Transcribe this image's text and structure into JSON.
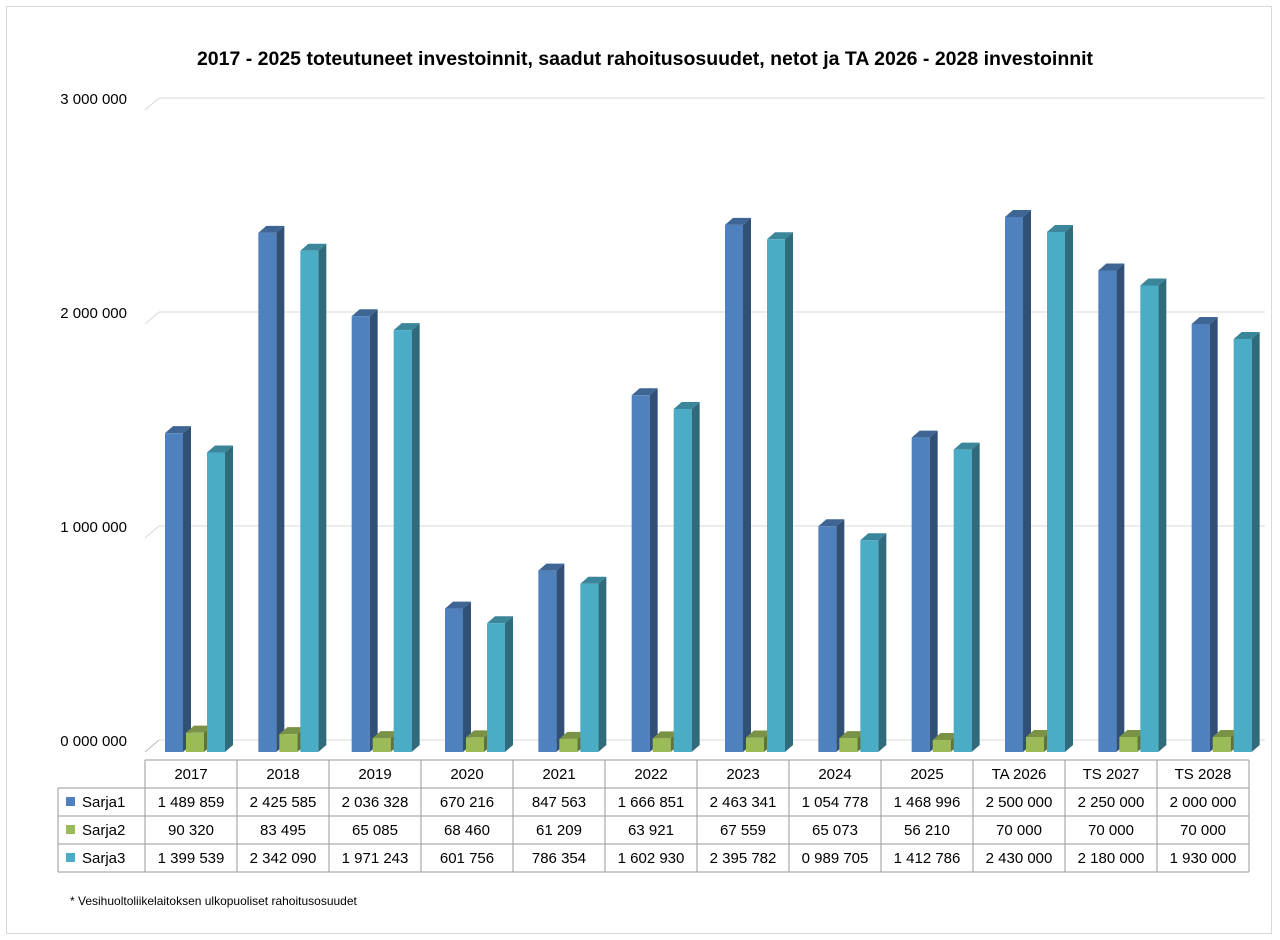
{
  "chart_data": {
    "type": "bar",
    "title": "2017 - 2025 toteutuneet investoinnit, saadut rahoitusosuudet, netot ja TA 2026 - 2028 investoinnit",
    "categories": [
      "2017",
      "2018",
      "2019",
      "2020",
      "2021",
      "2022",
      "2023",
      "2024",
      "2025",
      "TA 2026",
      "TS 2027",
      "TS 2028"
    ],
    "series": [
      {
        "name": "Sarja1",
        "color": "#4f81bd",
        "values": [
          1489859,
          2425585,
          2036328,
          670216,
          847563,
          1666851,
          2463341,
          1054778,
          1468996,
          2500000,
          2250000,
          2000000
        ],
        "labels": [
          "1 489 859",
          "2 425 585",
          "2 036 328",
          "670 216",
          "847 563",
          "1 666 851",
          "2 463 341",
          "1 054 778",
          "1 468 996",
          "2 500 000",
          "2 250 000",
          "2 000 000"
        ]
      },
      {
        "name": "Sarja2",
        "color": "#9bbb59",
        "values": [
          90320,
          83495,
          65085,
          68460,
          61209,
          63921,
          67559,
          65073,
          56210,
          70000,
          70000,
          70000
        ],
        "labels": [
          "90 320",
          "83 495",
          "65 085",
          "68 460",
          "61 209",
          "63 921",
          "67 559",
          "65 073",
          "56 210",
          "70 000",
          "70 000",
          "70 000"
        ]
      },
      {
        "name": "Sarja3",
        "color": "#4bacc6",
        "values": [
          1399539,
          2342090,
          1971243,
          601756,
          786354,
          1602930,
          2395782,
          989705,
          1412786,
          2430000,
          2180000,
          1930000
        ],
        "labels": [
          "1 399 539",
          "2 342 090",
          "1 971 243",
          "601 756",
          "786 354",
          "1 602 930",
          "2 395 782",
          "0 989 705",
          "1 412 786",
          "2 430 000",
          "2 180 000",
          "1 930 000"
        ]
      }
    ],
    "ylim": [
      0,
      3000000
    ],
    "yticks": [
      0,
      1000000,
      2000000,
      3000000
    ],
    "ytick_labels": [
      "0 000 000",
      "1 000 000",
      "2 000 000",
      "3 000 000"
    ],
    "grid": true,
    "legend": "data-table"
  },
  "footnote": "* Vesihuoltoliikelaitoksen ulkopuoliset rahoitusosuudet"
}
